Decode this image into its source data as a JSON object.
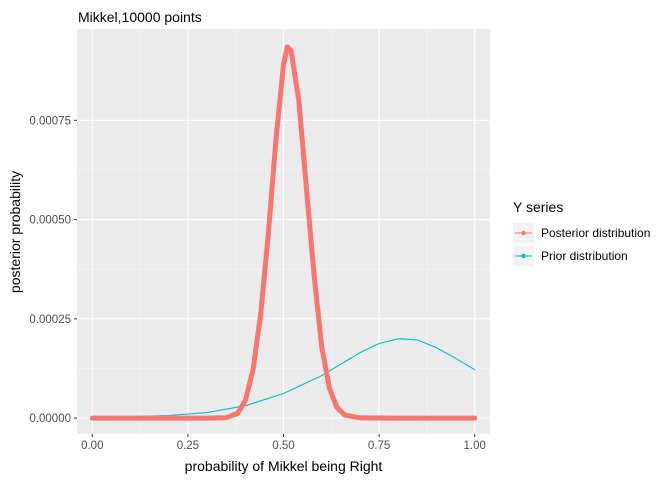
{
  "chart_data": {
    "type": "line",
    "title": "Mikkel,10000 points",
    "xlabel": "probability of Mikkel being Right",
    "ylabel": "posterior probability",
    "xlim": [
      -0.04,
      1.04
    ],
    "ylim": [
      -4e-05,
      0.00098
    ],
    "xticks": [
      0.0,
      0.25,
      0.5,
      0.75,
      1.0
    ],
    "xtick_labels": [
      "0.00",
      "0.25",
      "0.50",
      "0.75",
      "1.00"
    ],
    "yticks": [
      0.0,
      0.00025,
      0.0005,
      0.00075
    ],
    "ytick_labels": [
      "0.00000",
      "0.00025",
      "0.00050",
      "0.00075"
    ],
    "grid": true,
    "legend": {
      "title": "Y series",
      "position": "right",
      "entries": [
        "Posterior distribution",
        "Prior distribution"
      ]
    },
    "series": [
      {
        "name": "Posterior distribution",
        "color": "#f8766d",
        "x": [
          0.0,
          0.1,
          0.2,
          0.3,
          0.35,
          0.38,
          0.4,
          0.42,
          0.44,
          0.46,
          0.48,
          0.5,
          0.51,
          0.52,
          0.54,
          0.56,
          0.58,
          0.6,
          0.62,
          0.64,
          0.66,
          0.7,
          0.8,
          0.9,
          1.0
        ],
        "y": [
          0.0,
          0.0,
          0.0,
          0.0,
          1e-06,
          1.2e-05,
          4.4e-05,
          0.00012,
          0.00026,
          0.00046,
          0.0007,
          0.00089,
          0.000935,
          0.000925,
          0.0008,
          0.00058,
          0.00036,
          0.00018,
          7.5e-05,
          2.7e-05,
          8e-06,
          5e-07,
          0.0,
          0.0,
          0.0
        ]
      },
      {
        "name": "Prior distribution",
        "color": "#00bfc4",
        "x": [
          0.0,
          0.1,
          0.2,
          0.3,
          0.4,
          0.5,
          0.6,
          0.7,
          0.75,
          0.8,
          0.85,
          0.9,
          0.95,
          1.0
        ],
        "y": [
          3e-06,
          4e-06,
          6.5e-06,
          1.4e-05,
          3.1e-05,
          6.2e-05,
          0.000107,
          0.000165,
          0.000188,
          0.0002,
          0.000197,
          0.000177,
          0.000151,
          0.000122
        ]
      }
    ]
  }
}
